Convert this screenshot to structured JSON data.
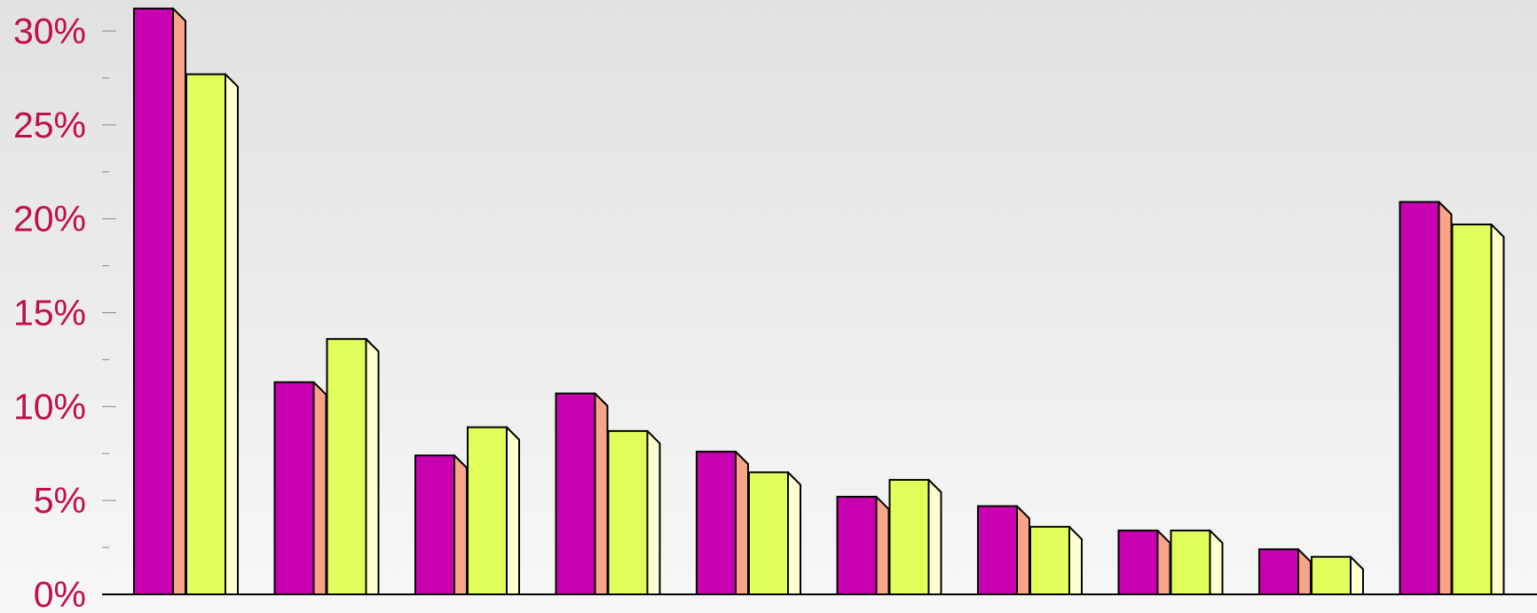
{
  "chart_data": {
    "type": "bar",
    "style": "3d-clustered",
    "title": "",
    "xlabel": "",
    "ylabel": "",
    "ylim": [
      0,
      30
    ],
    "y_ticks": [
      "0%",
      "5%",
      "10%",
      "15%",
      "20%",
      "25%",
      "30%"
    ],
    "categories": [
      "",
      "",
      "",
      "",
      "",
      "",
      "",
      "",
      "",
      ""
    ],
    "series": [
      {
        "values": [
          31.2,
          11.3,
          7.4,
          10.7,
          7.6,
          5.2,
          4.7,
          3.4,
          2.4,
          20.9
        ],
        "color": "#c800b0",
        "side_color": "#f8a488"
      },
      {
        "values": [
          27.7,
          13.6,
          8.9,
          8.7,
          6.5,
          6.1,
          3.6,
          3.4,
          2.0,
          19.7
        ],
        "color": "#e0ff5a",
        "side_color": "#ffffd0"
      }
    ],
    "grid": false,
    "legend": "none",
    "tick_color": "#c0104c"
  }
}
